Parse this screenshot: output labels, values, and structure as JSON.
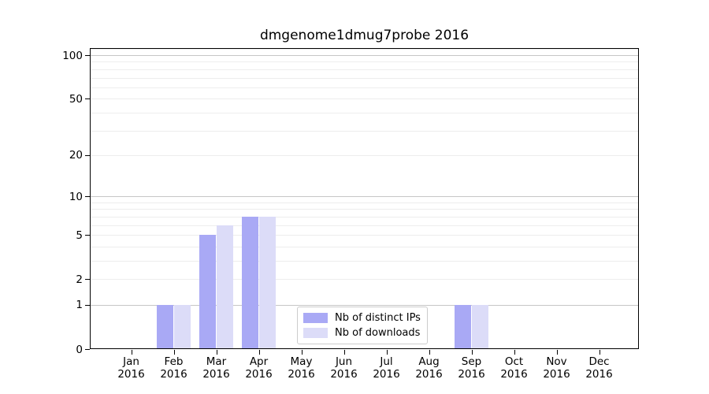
{
  "chart_data": {
    "type": "bar",
    "title": "dmgenome1dmug7probe 2016",
    "year": "2016",
    "categories": [
      "Jan 2016",
      "Feb 2016",
      "Mar 2016",
      "Apr 2016",
      "May 2016",
      "Jun 2016",
      "Jul 2016",
      "Aug 2016",
      "Sep 2016",
      "Oct 2016",
      "Nov 2016",
      "Dec 2016"
    ],
    "months": [
      "Jan",
      "Feb",
      "Mar",
      "Apr",
      "May",
      "Jun",
      "Jul",
      "Aug",
      "Sep",
      "Oct",
      "Nov",
      "Dec"
    ],
    "series": [
      {
        "name": "Nb of distinct IPs",
        "color": "#a9a9f5",
        "values": [
          0,
          1,
          5,
          7,
          0,
          0,
          0,
          0,
          1,
          0,
          0,
          0
        ]
      },
      {
        "name": "Nb of downloads",
        "color": "#dcdcf8",
        "values": [
          0,
          1,
          6,
          7,
          0,
          0,
          0,
          0,
          1,
          0,
          0,
          0
        ]
      }
    ],
    "y_axis": {
      "scale": "log1p",
      "tick_values": [
        100,
        50,
        20,
        10,
        5,
        2,
        1,
        0
      ],
      "max": 112,
      "major_grid_values": [
        1,
        10,
        100
      ],
      "minor_grid_values": [
        2,
        3,
        4,
        5,
        6,
        7,
        8,
        9,
        20,
        30,
        40,
        50,
        60,
        70,
        80,
        90,
        110
      ]
    },
    "legend": {
      "position": "lower center"
    },
    "colors": {
      "background": "#ffffff",
      "axis": "#000000",
      "text": "#000000",
      "major_grid": "#c6c6c6",
      "minor_grid": "#ededed",
      "legend_border": "#cccccc"
    }
  }
}
